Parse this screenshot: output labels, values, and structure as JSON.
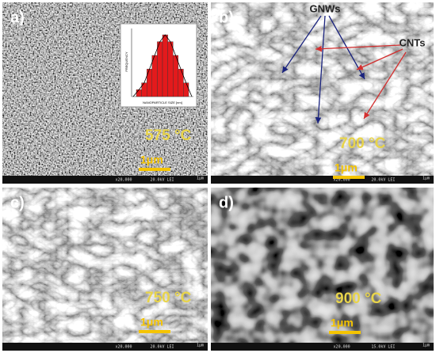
{
  "panels": [
    {
      "label": "a)",
      "temperature": "575 °C",
      "scale": "1μm",
      "footer_left": "x20,000",
      "footer_mid": "20.0kV LEI",
      "footer_right": "1μm"
    },
    {
      "label": "b)",
      "temperature": "700 °C",
      "scale": "1μm",
      "footer_left": "x20,000",
      "footer_mid": "20.0kV LEI",
      "footer_right": "1μm"
    },
    {
      "label": "c)",
      "temperature": "750 °C",
      "scale": "1μm",
      "footer_left": "x20,000",
      "footer_mid": "20.0kV LEI",
      "footer_right": "1μm"
    },
    {
      "label": "d)",
      "temperature": "900 °C",
      "scale": "1μm",
      "footer_left": "x20,000",
      "footer_mid": "15.0kV LEI",
      "footer_right": "1μm"
    }
  ],
  "inset": {
    "y_label": "FREQUENCY",
    "x_label": "NANOPARTICLE SIZE [nm]",
    "values": [
      1,
      2,
      4,
      6,
      8,
      9,
      8,
      6,
      4,
      2
    ]
  },
  "annotations": {
    "gnws": "GNWs",
    "cnts": "CNTs"
  }
}
